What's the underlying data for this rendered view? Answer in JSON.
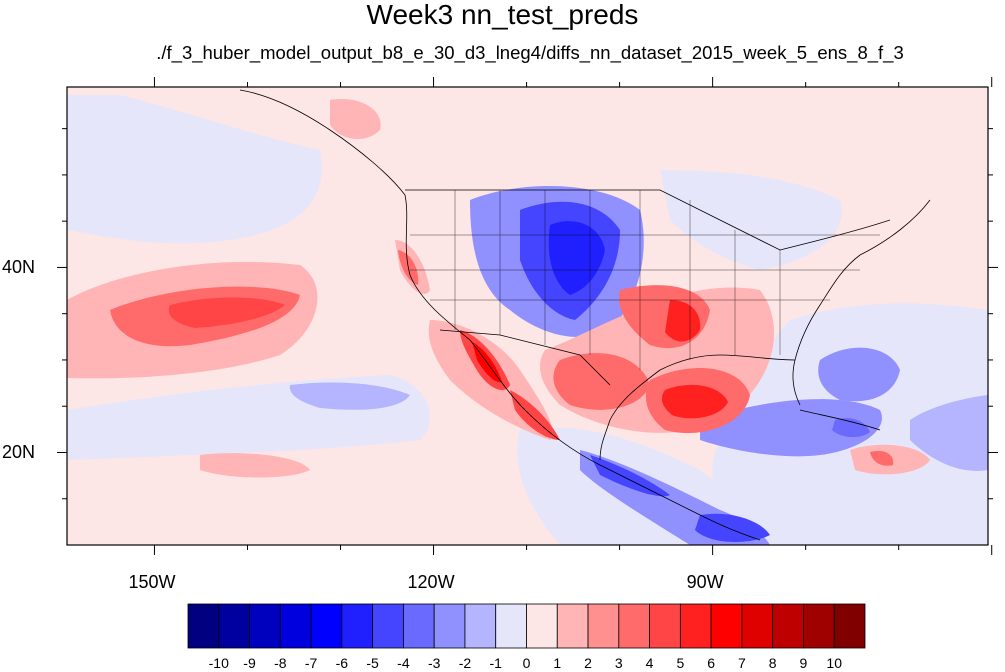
{
  "title": "Week3 nn_test_preds",
  "subtitle": "./f_3_huber_model_output_b8_e_30_d3_lneg4/diffs_nn_dataset_2015_week_5_ens_8_f_3",
  "axes": {
    "x_ticks": [
      {
        "label": "150W",
        "lon": -150
      },
      {
        "label": "120W",
        "lon": -120
      },
      {
        "label": "90W",
        "lon": -90
      }
    ],
    "y_ticks": [
      {
        "label": "40N",
        "lat": 40
      },
      {
        "label": "20N",
        "lat": 20
      }
    ],
    "lon_range": [
      -159.4,
      -60.4
    ],
    "lat_range": [
      10.0,
      59.5
    ]
  },
  "colorbar": {
    "labels": [
      "-10",
      "-9",
      "-8",
      "-7",
      "-6",
      "-5",
      "-4",
      "-3",
      "-2",
      "-1",
      "0",
      "1",
      "2",
      "3",
      "4",
      "5",
      "6",
      "7",
      "8",
      "9",
      "10"
    ],
    "colors": [
      "#000080",
      "#00009f",
      "#0000bf",
      "#0000df",
      "#0000ff",
      "#2020ff",
      "#4545ff",
      "#6a6aff",
      "#9090ff",
      "#b5b5ff",
      "#e6e6fa",
      "#fde6e6",
      "#ffb5b5",
      "#ff9090",
      "#ff6a6a",
      "#ff4545",
      "#ff2020",
      "#ff0000",
      "#df0000",
      "#bf0000",
      "#9f0000",
      "#800000"
    ]
  }
}
